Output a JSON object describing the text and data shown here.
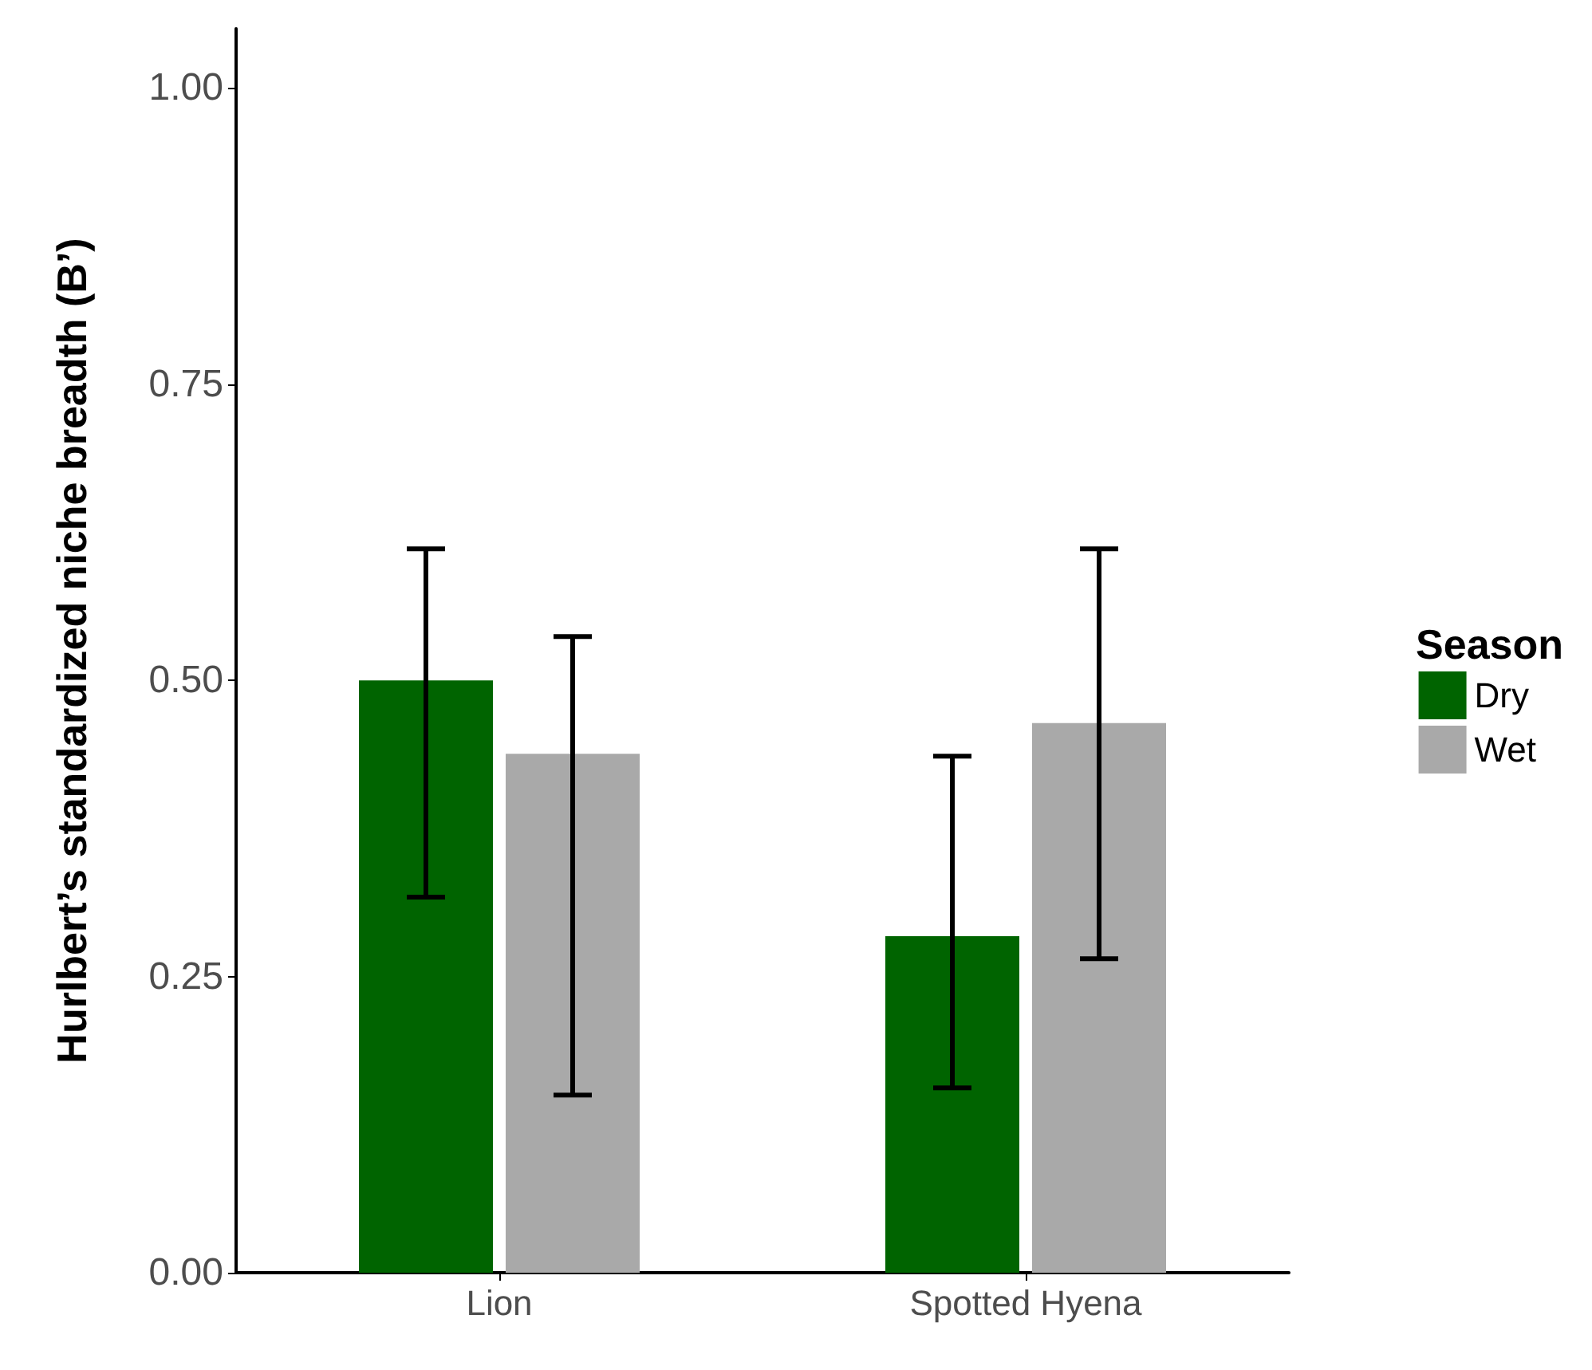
{
  "chart_data": {
    "type": "bar",
    "ylabel": "Hurlbert’s standardized niche breadth (B’)",
    "legend_title": "Season",
    "legend": "right",
    "grid": false,
    "categories": [
      "Lion",
      "Spotted Hyena"
    ],
    "series": [
      {
        "name": "Dry",
        "color": "#006400",
        "values": [
          0.5,
          0.284
        ],
        "errors": [
          [
            0.317,
            0.611
          ],
          [
            0.156,
            0.436
          ]
        ]
      },
      {
        "name": "Wet",
        "color": "#a9a9a9",
        "values": [
          0.438,
          0.464
        ],
        "errors": [
          [
            0.15,
            0.537
          ],
          [
            0.265,
            0.611
          ]
        ]
      }
    ],
    "ylim": [
      0,
      1.05
    ],
    "yticks": [
      {
        "value": 0,
        "label": "0.00"
      },
      {
        "value": 0.25,
        "label": "0.25"
      },
      {
        "value": 0.5,
        "label": "0.50"
      },
      {
        "value": 0.75,
        "label": "0.75"
      },
      {
        "value": 1,
        "label": "1.00"
      }
    ]
  }
}
